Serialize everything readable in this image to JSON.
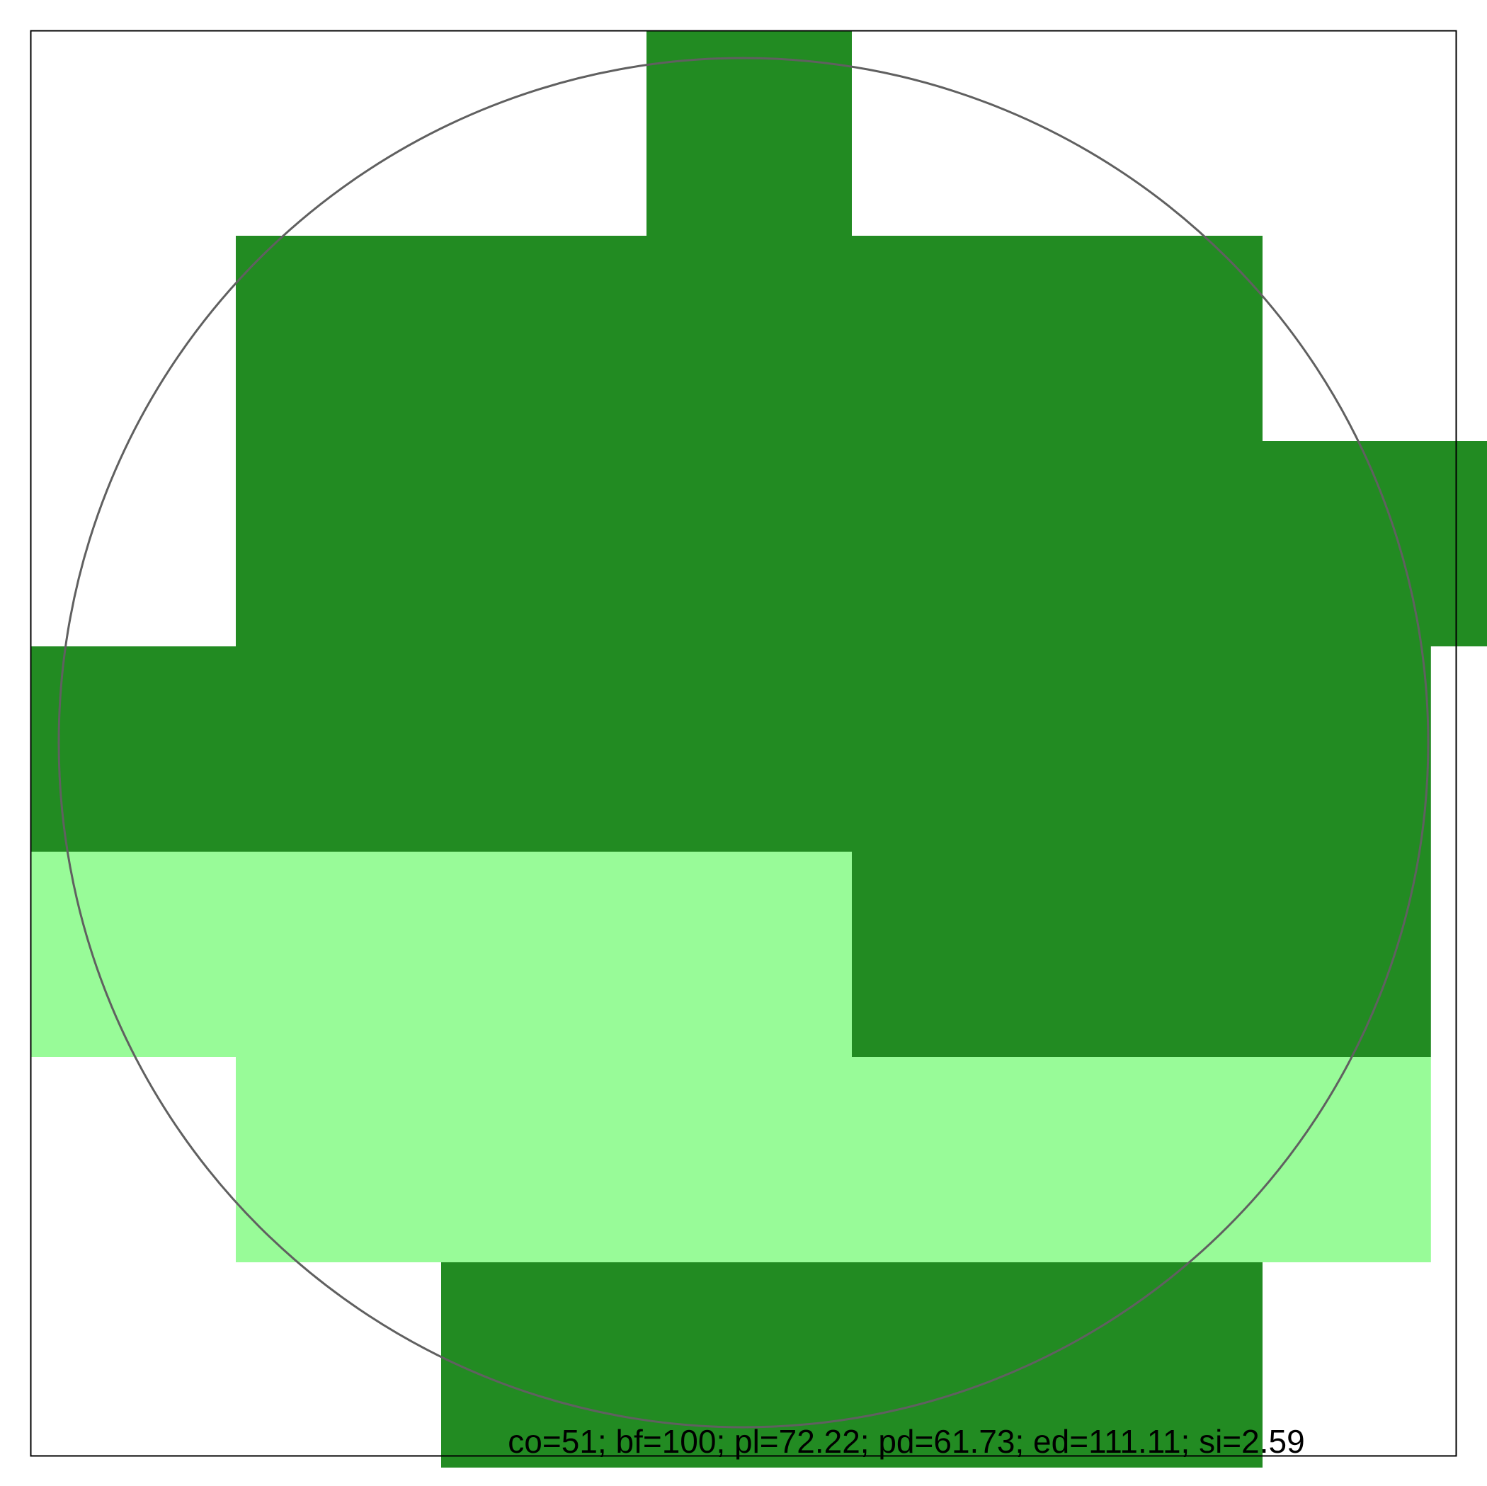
{
  "figure": {
    "colors": {
      "dark_cells": "#228B22",
      "light_cells": "#98FB98",
      "circle_stroke": "#606060",
      "frame": "#000000"
    },
    "stats_text": "co=51; bf=100; pl=72.22; pd=61.73; ed=111.11; si=2.59"
  }
}
